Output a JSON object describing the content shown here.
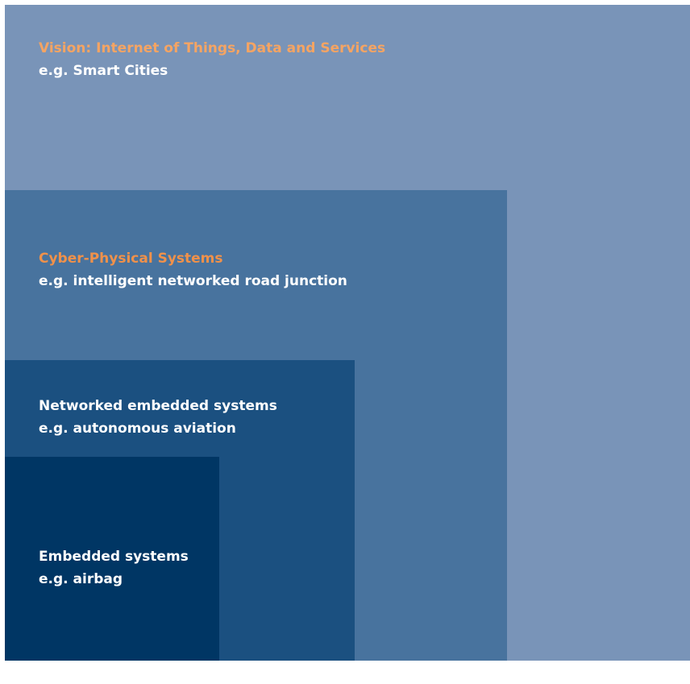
{
  "layers": [
    {
      "title": "Vision: Internet of Things, Data and Services",
      "subtitle": "e.g. Smart Cities",
      "background": "#7994b8",
      "title_color": "#f5a463"
    },
    {
      "title": "Cyber-Physical Systems",
      "subtitle": "e.g. intelligent networked road junction",
      "background": "#48739e",
      "title_color": "#f0914a"
    },
    {
      "title": "Networked embedded systems",
      "subtitle": "e.g. autonomous aviation",
      "background": "#1b5080",
      "title_color": "#ffffff"
    },
    {
      "title": "Embedded systems",
      "subtitle": "e.g. airbag",
      "background": "#003664",
      "title_color": "#ffffff"
    }
  ]
}
